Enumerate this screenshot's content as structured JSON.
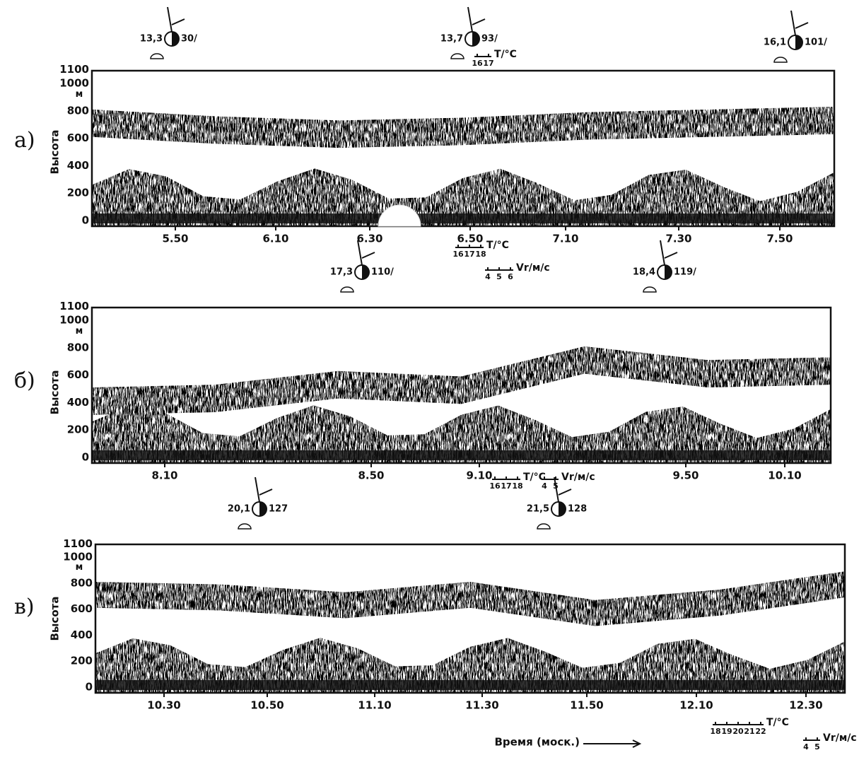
{
  "panels": [
    {
      "label": "а)",
      "y_label": "Высота",
      "y_unit": "м",
      "yticks": [
        0,
        200,
        400,
        600,
        800,
        1000,
        1100
      ],
      "xticks": [
        "5.50",
        "6.10",
        "6.30",
        "6.50",
        "7.10",
        "7.30",
        "7.50"
      ]
    },
    {
      "label": "б)",
      "y_label": "Высота",
      "y_unit": "м",
      "yticks": [
        0,
        200,
        400,
        600,
        800,
        1000,
        1100
      ],
      "xticks": [
        "8.10",
        "8.50",
        "9.10",
        "9.50",
        "10.10"
      ]
    },
    {
      "label": "в)",
      "y_label": "Высота",
      "y_unit": "м",
      "yticks": [
        0,
        200,
        400,
        600,
        800,
        1000,
        1100
      ],
      "xticks": [
        "10.30",
        "10.50",
        "11.10",
        "11.30",
        "11.50",
        "12.10",
        "12.30"
      ]
    }
  ],
  "stations": [
    {
      "temp": "13,3",
      "value": "30/"
    },
    {
      "temp": "13,7",
      "value": "93/"
    },
    {
      "temp": "16,1",
      "value": "101/"
    },
    {
      "temp": "17,3",
      "value": "110/"
    },
    {
      "temp": "18,4",
      "value": "119/"
    },
    {
      "temp": "20,1",
      "value": "127"
    },
    {
      "temp": "21,5",
      "value": "128"
    }
  ],
  "scales": [
    {
      "unit": "T/°C",
      "ticks": [
        "16",
        "17"
      ]
    },
    {
      "unit": "T/°C",
      "ticks": [
        "16",
        "17",
        "18"
      ]
    },
    {
      "unit": "Vr/м/с",
      "ticks": [
        "4",
        "5",
        "6"
      ]
    },
    {
      "unit": "T/°C",
      "ticks": [
        "16",
        "17",
        "18"
      ]
    },
    {
      "unit": "Vr/м/с",
      "ticks": [
        "4",
        "5"
      ]
    },
    {
      "unit": "T/°C",
      "ticks": [
        "18",
        "19",
        "20",
        "21",
        "22"
      ]
    },
    {
      "unit": "Vr/м/с",
      "ticks": [
        "4",
        "5"
      ]
    }
  ],
  "x_axis_label": "Время (моск.)"
}
